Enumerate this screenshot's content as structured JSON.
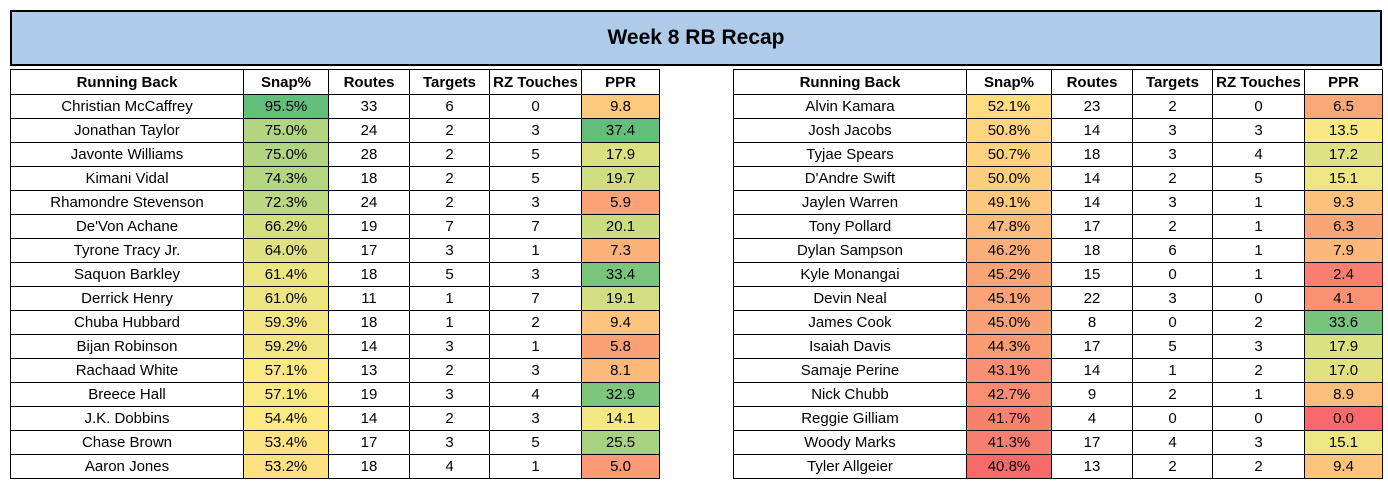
{
  "title": "Week 8 RB Recap",
  "headers": [
    "Running Back",
    "Snap%",
    "Routes",
    "Targets",
    "RZ Touches",
    "PPR"
  ],
  "tables": [
    {
      "rows": [
        {
          "name": "Christian McCaffrey",
          "snap": "95.5%",
          "routes": "33",
          "targets": "6",
          "rz": "0",
          "ppr": "9.8",
          "snap_color": "#63be7b",
          "ppr_color": "#fdc97d"
        },
        {
          "name": "Jonathan Taylor",
          "snap": "75.0%",
          "routes": "24",
          "targets": "2",
          "rz": "3",
          "ppr": "37.4",
          "snap_color": "#b1d580",
          "ppr_color": "#63be7b"
        },
        {
          "name": "Javonte Williams",
          "snap": "75.0%",
          "routes": "28",
          "targets": "2",
          "rz": "5",
          "ppr": "17.9",
          "snap_color": "#b1d580",
          "ppr_color": "#dae181"
        },
        {
          "name": "Kimani Vidal",
          "snap": "74.3%",
          "routes": "18",
          "targets": "2",
          "rz": "5",
          "ppr": "19.7",
          "snap_color": "#b4d680",
          "ppr_color": "#cedd80"
        },
        {
          "name": "Rhamondre Stevenson",
          "snap": "72.3%",
          "routes": "24",
          "targets": "2",
          "rz": "3",
          "ppr": "5.9",
          "snap_color": "#bcd881",
          "ppr_color": "#fba276"
        },
        {
          "name": "De'Von Achane",
          "snap": "66.2%",
          "routes": "19",
          "targets": "7",
          "rz": "7",
          "ppr": "20.1",
          "snap_color": "#d6e081",
          "ppr_color": "#cbdc80"
        },
        {
          "name": "Tyrone Tracy Jr.",
          "snap": "64.0%",
          "routes": "17",
          "targets": "3",
          "rz": "1",
          "ppr": "7.3",
          "snap_color": "#e0e282",
          "ppr_color": "#fcb179"
        },
        {
          "name": "Saquon Barkley",
          "snap": "61.4%",
          "routes": "18",
          "targets": "5",
          "rz": "3",
          "ppr": "33.4",
          "snap_color": "#ebe582",
          "ppr_color": "#7ac57c"
        },
        {
          "name": "Derrick Henry",
          "snap": "61.0%",
          "routes": "11",
          "targets": "1",
          "rz": "7",
          "ppr": "19.1",
          "snap_color": "#ece582",
          "ppr_color": "#d2de81"
        },
        {
          "name": "Chuba Hubbard",
          "snap": "59.3%",
          "routes": "18",
          "targets": "1",
          "rz": "2",
          "ppr": "9.4",
          "snap_color": "#f3e783",
          "ppr_color": "#fcc47c"
        },
        {
          "name": "Bijan Robinson",
          "snap": "59.2%",
          "routes": "14",
          "targets": "3",
          "rz": "1",
          "ppr": "5.8",
          "snap_color": "#f3e783",
          "ppr_color": "#fba176"
        },
        {
          "name": "Rachaad White",
          "snap": "57.1%",
          "routes": "13",
          "targets": "2",
          "rz": "3",
          "ppr": "8.1",
          "snap_color": "#fbea84",
          "ppr_color": "#fcb97a"
        },
        {
          "name": "Breece Hall",
          "snap": "57.1%",
          "routes": "19",
          "targets": "3",
          "rz": "4",
          "ppr": "32.9",
          "snap_color": "#fbea84",
          "ppr_color": "#7dc67c"
        },
        {
          "name": "J.K. Dobbins",
          "snap": "54.4%",
          "routes": "14",
          "targets": "2",
          "rz": "3",
          "ppr": "14.1",
          "snap_color": "#feea83",
          "ppr_color": "#f4e883"
        },
        {
          "name": "Chase Brown",
          "snap": "53.4%",
          "routes": "17",
          "targets": "3",
          "rz": "5",
          "ppr": "25.5",
          "snap_color": "#fee382",
          "ppr_color": "#a7d27f"
        },
        {
          "name": "Aaron Jones",
          "snap": "53.2%",
          "routes": "18",
          "targets": "4",
          "rz": "1",
          "ppr": "5.0",
          "snap_color": "#fee282",
          "ppr_color": "#fb9a75"
        }
      ]
    },
    {
      "rows": [
        {
          "name": "Alvin Kamara",
          "snap": "52.1%",
          "routes": "23",
          "targets": "2",
          "rz": "0",
          "ppr": "6.5",
          "snap_color": "#fedd81",
          "ppr_color": "#fba877"
        },
        {
          "name": "Josh Jacobs",
          "snap": "50.8%",
          "routes": "14",
          "targets": "3",
          "rz": "3",
          "ppr": "13.5",
          "snap_color": "#fdd47f",
          "ppr_color": "#f8e984"
        },
        {
          "name": "Tyjae Spears",
          "snap": "50.7%",
          "routes": "18",
          "targets": "3",
          "rz": "4",
          "ppr": "17.2",
          "snap_color": "#fdd37f",
          "ppr_color": "#dee282"
        },
        {
          "name": "D'Andre Swift",
          "snap": "50.0%",
          "routes": "14",
          "targets": "2",
          "rz": "5",
          "ppr": "15.1",
          "snap_color": "#fdce7e",
          "ppr_color": "#ede682"
        },
        {
          "name": "Jaylen Warren",
          "snap": "49.1%",
          "routes": "14",
          "targets": "3",
          "rz": "1",
          "ppr": "9.3",
          "snap_color": "#fdc77d",
          "ppr_color": "#fcc27c"
        },
        {
          "name": "Tony Pollard",
          "snap": "47.8%",
          "routes": "17",
          "targets": "2",
          "rz": "1",
          "ppr": "6.3",
          "snap_color": "#fcbc7b",
          "ppr_color": "#fba577"
        },
        {
          "name": "Dylan Sampson",
          "snap": "46.2%",
          "routes": "18",
          "targets": "6",
          "rz": "1",
          "ppr": "7.9",
          "snap_color": "#fbae78",
          "ppr_color": "#fcb77a"
        },
        {
          "name": "Kyle Monangai",
          "snap": "45.2%",
          "routes": "15",
          "targets": "0",
          "rz": "1",
          "ppr": "2.4",
          "snap_color": "#fba476",
          "ppr_color": "#f97f70"
        },
        {
          "name": "Devin Neal",
          "snap": "45.1%",
          "routes": "22",
          "targets": "3",
          "rz": "0",
          "ppr": "4.1",
          "snap_color": "#fba376",
          "ppr_color": "#fa9173"
        },
        {
          "name": "James Cook",
          "snap": "45.0%",
          "routes": "8",
          "targets": "0",
          "rz": "2",
          "ppr": "33.6",
          "snap_color": "#faa275",
          "ppr_color": "#78c47c"
        },
        {
          "name": "Isaiah Davis",
          "snap": "44.3%",
          "routes": "17",
          "targets": "5",
          "rz": "3",
          "ppr": "17.9",
          "snap_color": "#fa9b74",
          "ppr_color": "#dae181"
        },
        {
          "name": "Samaje Perine",
          "snap": "43.1%",
          "routes": "14",
          "targets": "1",
          "rz": "2",
          "ppr": "17.0",
          "snap_color": "#fa9073",
          "ppr_color": "#e0e282"
        },
        {
          "name": "Nick Chubb",
          "snap": "42.7%",
          "routes": "9",
          "targets": "2",
          "rz": "1",
          "ppr": "8.9",
          "snap_color": "#f98d72",
          "ppr_color": "#fcbf7b"
        },
        {
          "name": "Reggie Gilliam",
          "snap": "41.7%",
          "routes": "4",
          "targets": "0",
          "rz": "0",
          "ppr": "0.0",
          "snap_color": "#f9826f",
          "ppr_color": "#f8696b"
        },
        {
          "name": "Woody Marks",
          "snap": "41.3%",
          "routes": "17",
          "targets": "4",
          "rz": "3",
          "ppr": "15.1",
          "snap_color": "#f87e6f",
          "ppr_color": "#ede682"
        },
        {
          "name": "Tyler Allgeier",
          "snap": "40.8%",
          "routes": "13",
          "targets": "2",
          "rz": "2",
          "ppr": "9.4",
          "snap_color": "#f8696b",
          "ppr_color": "#fcc47c"
        }
      ]
    }
  ]
}
